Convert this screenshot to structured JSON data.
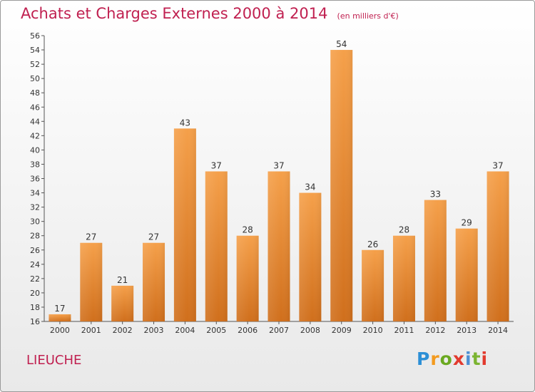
{
  "title": "Achats et Charges Externes 2000 à 2014",
  "unit_note": "(en milliers d'€)",
  "commune": "LIEUCHE",
  "logo_text": "Proxiti",
  "chart_data": {
    "type": "bar",
    "categories": [
      "2000",
      "2001",
      "2002",
      "2003",
      "2004",
      "2005",
      "2006",
      "2007",
      "2008",
      "2009",
      "2010",
      "2011",
      "2012",
      "2013",
      "2014"
    ],
    "values": [
      17,
      27,
      21,
      27,
      43,
      37,
      28,
      37,
      34,
      54,
      26,
      28,
      33,
      29,
      37
    ],
    "ylim": [
      16,
      56
    ],
    "y_ticks": [
      16,
      18,
      20,
      22,
      24,
      26,
      28,
      30,
      32,
      34,
      36,
      38,
      40,
      42,
      44,
      46,
      48,
      50,
      52,
      54,
      56
    ],
    "grid": false,
    "bar_color_top": "#f5a04a",
    "bar_color_bottom": "#d06f1c"
  }
}
